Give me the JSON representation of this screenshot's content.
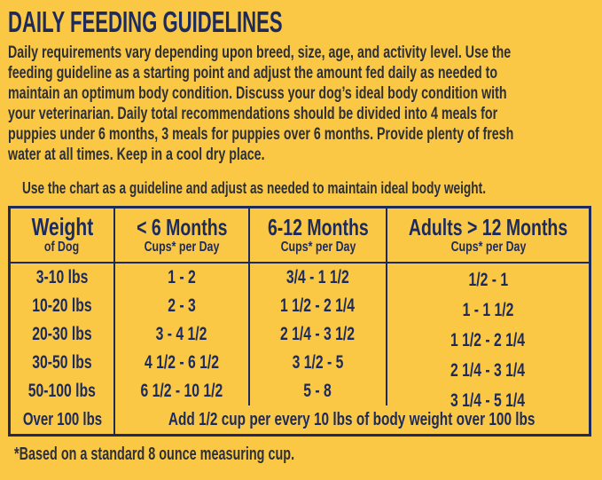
{
  "colors": {
    "background": "#fbc845",
    "heading_ink": "#1d2b5c",
    "body_ink": "#2d3038",
    "table_ink": "#1d2b5c"
  },
  "title": "DAILY FEEDING GUIDELINES",
  "intro": {
    "lines": [
      "Daily requirements vary depending upon breed, size, age, and activity level. Use the",
      "feeding guideline as a starting point and adjust the amount fed daily as needed to",
      "maintain an optimum body condition. Discuss your dog’s ideal body condition with",
      "your veterinarian. Daily total recommendations should be divided into 4 meals for",
      "puppies under 6 months, 3 meals for puppies over 6 months. Provide plenty of fresh",
      "water at all times. Keep in a cool dry place."
    ]
  },
  "chart_note": "Use the chart as a guideline and adjust as needed to maintain ideal body weight.",
  "table": {
    "headers": [
      {
        "title": "Weight",
        "subtitle": "of Dog"
      },
      {
        "title": "< 6 Months",
        "subtitle": "Cups* per Day"
      },
      {
        "title": "6-12 Months",
        "subtitle": "Cups* per Day"
      },
      {
        "title": "Adults > 12 Months",
        "subtitle": "Cups* per Day"
      }
    ],
    "rows": [
      {
        "weight": "3-10 lbs",
        "under_6_months": "1 - 2",
        "months_6_12": "3/4 - 1 1/2",
        "adults": "1/2 - 1"
      },
      {
        "weight": "10-20 lbs",
        "under_6_months": "2 - 3",
        "months_6_12": "1 1/2 - 2 1/4",
        "adults": "1 - 1 1/2"
      },
      {
        "weight": "20-30 lbs",
        "under_6_months": "3 - 4 1/2",
        "months_6_12": "2 1/4 - 3 1/2",
        "adults": "1 1/2 - 2 1/4"
      },
      {
        "weight": "30-50 lbs",
        "under_6_months": "4 1/2 - 6 1/2",
        "months_6_12": "3 1/2 - 5",
        "adults": "2 1/4 - 3 1/4"
      },
      {
        "weight": "50-100 lbs",
        "under_6_months": "6 1/2 - 10 1/2",
        "months_6_12": "5 - 8",
        "adults": "3 1/4 - 5 1/4"
      }
    ],
    "over100_row": {
      "weight": "Over 100 lbs",
      "note": "Add 1/2 cup per every 10 lbs of body weight over 100 lbs"
    }
  },
  "footnote": "*Based on a standard 8 ounce measuring cup."
}
